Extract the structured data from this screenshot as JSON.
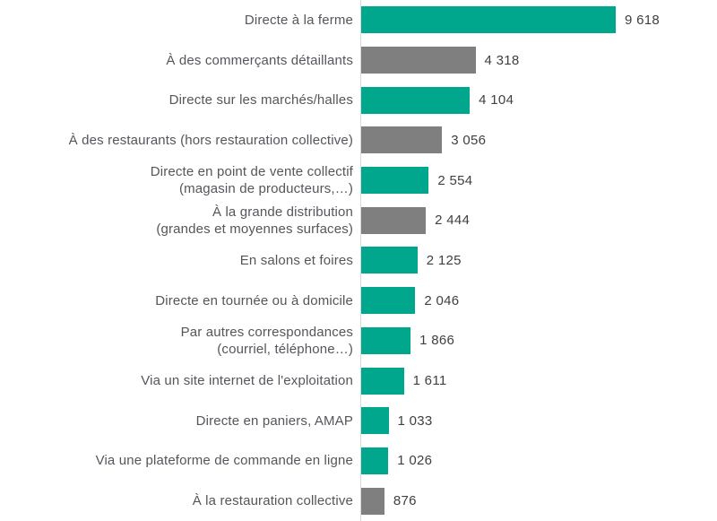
{
  "chart_data": {
    "type": "bar",
    "orientation": "horizontal",
    "title": "",
    "xlabel": "",
    "ylabel": "",
    "xlim": [
      0,
      9618
    ],
    "grid": false,
    "legend": false,
    "axis_line_color": "#d9d9d9",
    "palette": {
      "teal": "#00a78c",
      "gray": "#7f7f7f"
    },
    "categories": [
      "Directe à la ferme",
      "À des commerçants détaillants",
      "Directe sur les marchés/halles",
      "À des restaurants (hors restauration collective)",
      "Directe en point de vente collectif\n(magasin de producteurs,…)",
      "À la grande distribution\n(grandes et moyennes surfaces)",
      "En salons et foires",
      "Directe en tournée ou à domicile",
      "Par autres correspondances\n(courriel, téléphone…)",
      "Via un site internet de l'exploitation",
      "Directe en paniers, AMAP",
      "Via une plateforme de commande en ligne",
      "À la restauration collective"
    ],
    "values": [
      9618,
      4318,
      4104,
      3056,
      2554,
      2444,
      2125,
      2046,
      1866,
      1611,
      1033,
      1026,
      876
    ],
    "value_labels": [
      "9 618",
      "4 318",
      "4 104",
      "3 056",
      "2 554",
      "2 444",
      "2 125",
      "2 046",
      "1 866",
      "1 611",
      "1 033",
      "1 026",
      "876"
    ],
    "bar_colors": [
      "teal",
      "gray",
      "teal",
      "gray",
      "teal",
      "gray",
      "teal",
      "teal",
      "teal",
      "teal",
      "teal",
      "teal",
      "gray"
    ]
  }
}
